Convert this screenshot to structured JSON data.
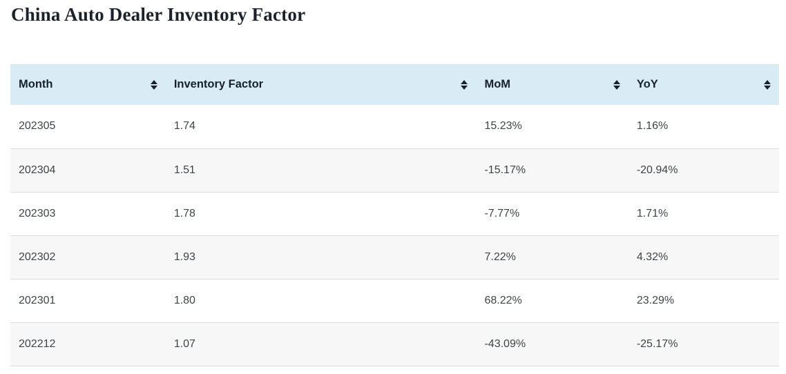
{
  "page": {
    "title": "China Auto Dealer Inventory Factor"
  },
  "colors": {
    "header_background": "#d9ecf5",
    "zebra_row_background": "#f7f7f8",
    "row_divider": "#ddddde",
    "header_text": "#17212b",
    "body_text": "#3f4346",
    "sort_icon": "#16212c"
  },
  "icons": {
    "sort": "sort-up-down-icon"
  },
  "table": {
    "columns": [
      {
        "label": "Month"
      },
      {
        "label": "Inventory Factor"
      },
      {
        "label": "MoM"
      },
      {
        "label": "YoY"
      }
    ],
    "rows": [
      {
        "month": "202305",
        "inventory_factor": "1.74",
        "mom": "15.23%",
        "yoy": "1.16%"
      },
      {
        "month": "202304",
        "inventory_factor": "1.51",
        "mom": "-15.17%",
        "yoy": "-20.94%"
      },
      {
        "month": "202303",
        "inventory_factor": "1.78",
        "mom": "-7.77%",
        "yoy": "1.71%"
      },
      {
        "month": "202302",
        "inventory_factor": "1.93",
        "mom": "7.22%",
        "yoy": "4.32%"
      },
      {
        "month": "202301",
        "inventory_factor": "1.80",
        "mom": "68.22%",
        "yoy": "23.29%"
      },
      {
        "month": "202212",
        "inventory_factor": "1.07",
        "mom": "-43.09%",
        "yoy": "-25.17%"
      }
    ]
  },
  "chart_data": {
    "type": "table",
    "title": "China Auto Dealer Inventory Factor",
    "columns": [
      "Month",
      "Inventory Factor",
      "MoM",
      "YoY"
    ],
    "months": [
      "202305",
      "202304",
      "202303",
      "202302",
      "202301",
      "202212"
    ],
    "inventory_factor": [
      1.74,
      1.51,
      1.78,
      1.93,
      1.8,
      1.07
    ],
    "mom_pct": [
      15.23,
      -15.17,
      -7.77,
      7.22,
      68.22,
      -43.09
    ],
    "yoy_pct": [
      1.16,
      -20.94,
      1.71,
      4.32,
      23.29,
      -25.17
    ]
  }
}
